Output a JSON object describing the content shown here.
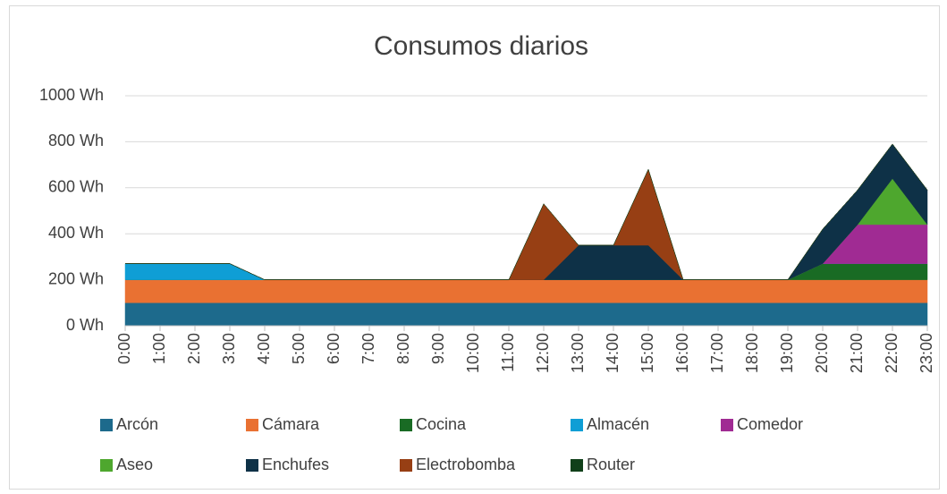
{
  "chart_data": {
    "type": "stacked_area",
    "title": "Consumos diarios",
    "categories": [
      "0:00",
      "1:00",
      "2:00",
      "3:00",
      "4:00",
      "5:00",
      "6:00",
      "7:00",
      "8:00",
      "9:00",
      "10:00",
      "11:00",
      "12:00",
      "13:00",
      "14:00",
      "15:00",
      "16:00",
      "17:00",
      "18:00",
      "19:00",
      "20:00",
      "21:00",
      "22:00",
      "23:00"
    ],
    "series": [
      {
        "name": "Arcón",
        "color": "#1d6a8c",
        "values": [
          100,
          100,
          100,
          100,
          100,
          100,
          100,
          100,
          100,
          100,
          100,
          100,
          100,
          100,
          100,
          100,
          100,
          100,
          100,
          100,
          100,
          100,
          100,
          100
        ]
      },
      {
        "name": "Cámara",
        "color": "#e97132",
        "values": [
          100,
          100,
          100,
          100,
          100,
          100,
          100,
          100,
          100,
          100,
          100,
          100,
          100,
          100,
          100,
          100,
          100,
          100,
          100,
          100,
          100,
          100,
          100,
          100
        ]
      },
      {
        "name": "Cocina",
        "color": "#196b24",
        "values": [
          0,
          0,
          0,
          0,
          0,
          0,
          0,
          0,
          0,
          0,
          0,
          0,
          0,
          0,
          0,
          0,
          0,
          0,
          0,
          0,
          70,
          70,
          70,
          70
        ]
      },
      {
        "name": "Almacén",
        "color": "#0f9ed5",
        "values": [
          70,
          70,
          70,
          70,
          0,
          0,
          0,
          0,
          0,
          0,
          0,
          0,
          0,
          0,
          0,
          0,
          0,
          0,
          0,
          0,
          0,
          0,
          0,
          0
        ]
      },
      {
        "name": "Comedor",
        "color": "#a02b93",
        "values": [
          0,
          0,
          0,
          0,
          0,
          0,
          0,
          0,
          0,
          0,
          0,
          0,
          0,
          0,
          0,
          0,
          0,
          0,
          0,
          0,
          0,
          170,
          170,
          170
        ]
      },
      {
        "name": "Aseo",
        "color": "#4ea72e",
        "values": [
          0,
          0,
          0,
          0,
          0,
          0,
          0,
          0,
          0,
          0,
          0,
          0,
          0,
          0,
          0,
          0,
          0,
          0,
          0,
          0,
          0,
          0,
          200,
          0
        ]
      },
      {
        "name": "Enchufes",
        "color": "#0e3147",
        "values": [
          0,
          0,
          0,
          0,
          0,
          0,
          0,
          0,
          0,
          0,
          0,
          0,
          0,
          150,
          150,
          150,
          0,
          0,
          0,
          0,
          150,
          150,
          150,
          150
        ]
      },
      {
        "name": "Electrobomba",
        "color": "#973f14",
        "values": [
          0,
          0,
          0,
          0,
          0,
          0,
          0,
          0,
          0,
          0,
          0,
          0,
          330,
          0,
          0,
          330,
          0,
          0,
          0,
          0,
          0,
          0,
          0,
          0
        ]
      },
      {
        "name": "Router",
        "color": "#10401a",
        "values": [
          0,
          0,
          0,
          0,
          0,
          0,
          0,
          0,
          0,
          0,
          0,
          0,
          0,
          0,
          0,
          0,
          0,
          0,
          0,
          0,
          0,
          0,
          0,
          0
        ]
      }
    ],
    "ylim": [
      0,
      1000
    ],
    "yticks": [
      {
        "value": 0,
        "label": "0 Wh"
      },
      {
        "value": 200,
        "label": "200 Wh"
      },
      {
        "value": 400,
        "label": "400 Wh"
      },
      {
        "value": 600,
        "label": "600 Wh"
      },
      {
        "value": 800,
        "label": "800 Wh"
      },
      {
        "value": 1000,
        "label": "1000 Wh"
      }
    ],
    "grid": true
  }
}
